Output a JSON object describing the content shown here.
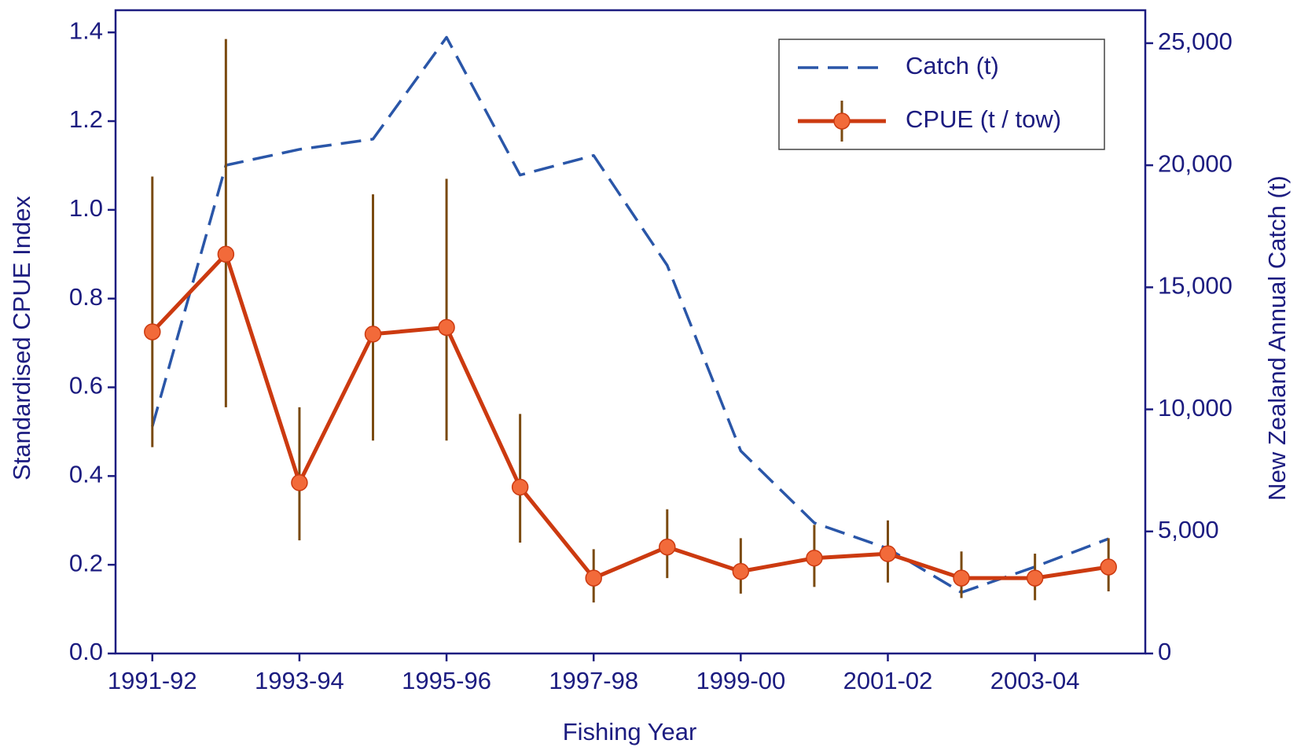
{
  "chart_data": {
    "type": "line",
    "x_label": "Fishing Year",
    "y_label": "Standardised CPUE Index",
    "y2_label": "New Zealand Annual Catch (t)",
    "categories": [
      "1991-92",
      null,
      "1993-94",
      null,
      "1995-96",
      null,
      "1997-98",
      null,
      "1999-00",
      null,
      "2001-02",
      null,
      "2003-04",
      null
    ],
    "series": [
      {
        "name": "Catch (t)",
        "color": "#2a56a8",
        "axis": "y2",
        "style": "dashed",
        "values": [
          9300,
          20000,
          20650,
          21070,
          25240,
          19600,
          20400,
          15900,
          8300,
          5350,
          4300,
          2500,
          3550,
          4700
        ]
      },
      {
        "name": "CPUE (t / tow)",
        "color": "#cc3a10",
        "marker_color": "#f26a3a",
        "error_color": "#7a4a10",
        "style": "solid",
        "values": [
          0.725,
          0.9,
          0.385,
          0.72,
          0.735,
          0.375,
          0.17,
          0.24,
          0.185,
          0.215,
          0.225,
          0.17,
          0.17,
          0.195
        ],
        "lower": [
          0.465,
          0.555,
          0.255,
          0.48,
          0.48,
          0.25,
          0.115,
          0.17,
          0.135,
          0.15,
          0.16,
          0.125,
          0.12,
          0.14
        ],
        "upper": [
          1.075,
          1.385,
          0.555,
          1.035,
          1.07,
          0.54,
          0.235,
          0.325,
          0.26,
          0.29,
          0.3,
          0.23,
          0.225,
          0.26
        ]
      }
    ],
    "ylim": [
      0,
      1.45
    ],
    "yticks": [
      {
        "value": 0,
        "label": "0.0"
      },
      0.2,
      0.4,
      0.6,
      0.8,
      {
        "value": 1,
        "label": "1.0"
      },
      1.2,
      1.4
    ],
    "y2lim": [
      0,
      26350
    ],
    "y2ticks": [
      0,
      {
        "value": 5000,
        "label": "5,000"
      },
      {
        "value": 10000,
        "label": "10,000"
      },
      {
        "value": 15000,
        "label": "15,000"
      },
      {
        "value": 20000,
        "label": "20,000"
      },
      {
        "value": 25000,
        "label": "25,000"
      }
    ],
    "legend": "upper right",
    "axis_color": "#1c1c80"
  }
}
